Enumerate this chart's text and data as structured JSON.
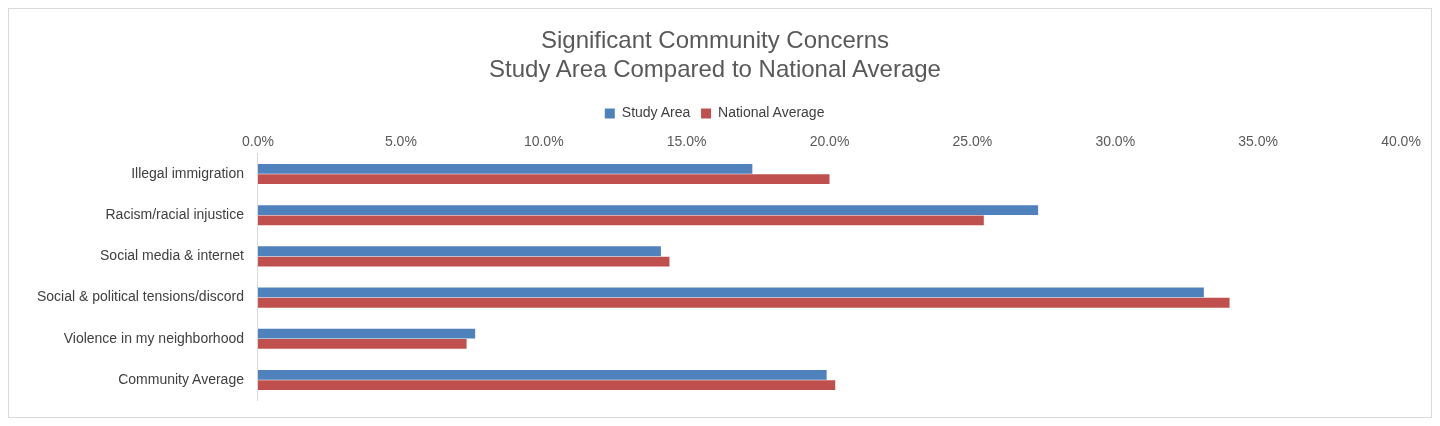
{
  "chart_data": {
    "type": "bar",
    "orientation": "horizontal",
    "title": "Significant Community Concerns\nStudy Area Compared to National Average",
    "categories": [
      "Illegal immigration",
      "Racism/racial injustice",
      "Social media & internet",
      "Social & political tensions/discord",
      "Violence in my neighborhood",
      "Community Average"
    ],
    "series": [
      {
        "name": "Study Area",
        "color": "#4f81bd",
        "values": [
          17.3,
          27.3,
          14.1,
          33.1,
          7.6,
          19.9
        ]
      },
      {
        "name": "National Average",
        "color": "#c0504d",
        "values": [
          20.0,
          25.4,
          14.4,
          34.0,
          7.3,
          20.2
        ]
      }
    ],
    "xlim": [
      0,
      40
    ],
    "xticks": [
      {
        "value": 0,
        "label": "0.0%"
      },
      {
        "value": 5,
        "label": "5.0%"
      },
      {
        "value": 10,
        "label": "10.0%"
      },
      {
        "value": 15,
        "label": "15.0%"
      },
      {
        "value": 20,
        "label": "20.0%"
      },
      {
        "value": 25,
        "label": "25.0%"
      },
      {
        "value": 30,
        "label": "30.0%"
      },
      {
        "value": 35,
        "label": "35.0%"
      },
      {
        "value": 40,
        "label": "40.0%"
      }
    ],
    "grid": false,
    "legend": "top"
  }
}
